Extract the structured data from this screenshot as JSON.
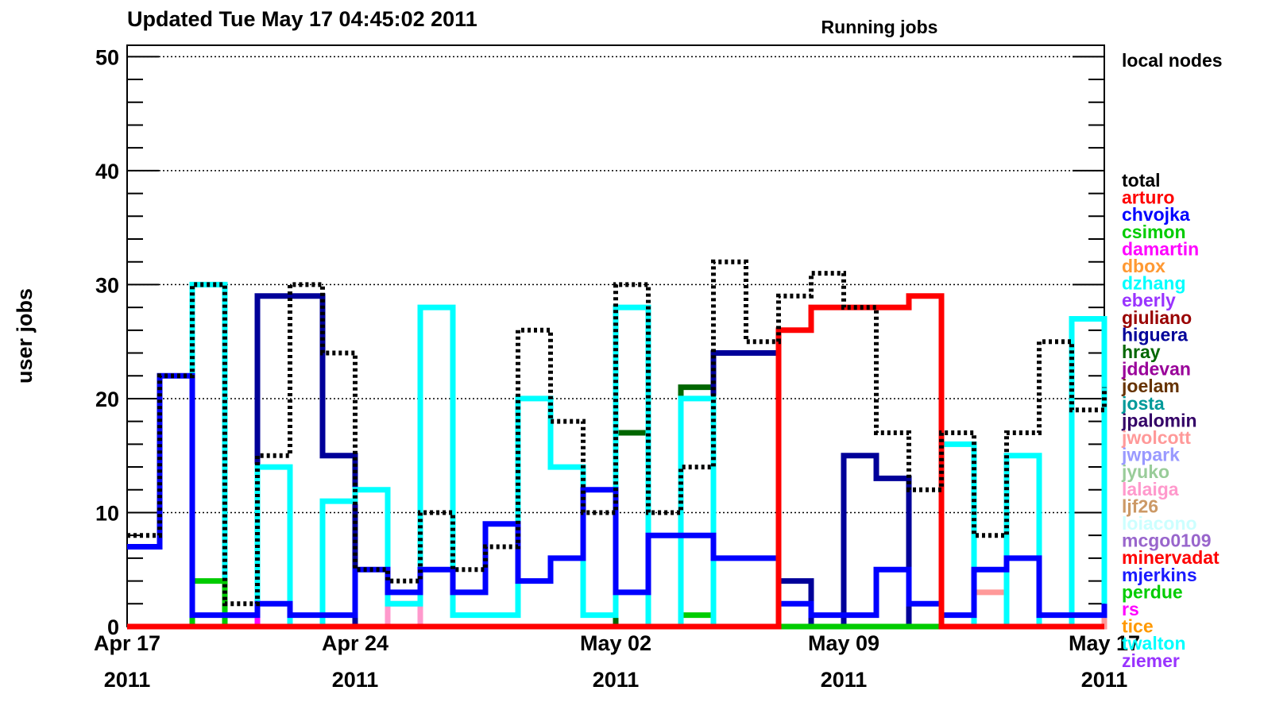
{
  "chart_data": {
    "type": "line",
    "step": true,
    "subtitle": "Updated Tue May 17 04:45:02 2011",
    "title": "Running jobs",
    "annotation": "local nodes",
    "ylabel": "user jobs",
    "ylim": [
      0,
      51
    ],
    "yticks": [
      0,
      10,
      20,
      30,
      40,
      50
    ],
    "grid": true,
    "xlim": [
      "2011-04-17",
      "2011-05-17"
    ],
    "xticks": [
      {
        "value": "2011-04-17",
        "label": "Apr 17 2011"
      },
      {
        "value": "2011-04-24",
        "label": "Apr 24 2011"
      },
      {
        "value": "2011-05-02",
        "label": "May 02 2011"
      },
      {
        "value": "2011-05-09",
        "label": "May 09 2011"
      },
      {
        "value": "2011-05-17",
        "label": "May 17 2011"
      }
    ],
    "x": [
      "2011-04-17",
      "2011-04-18",
      "2011-04-19",
      "2011-04-20",
      "2011-04-21",
      "2011-04-22",
      "2011-04-23",
      "2011-04-24",
      "2011-04-25",
      "2011-04-26",
      "2011-04-27",
      "2011-04-28",
      "2011-04-29",
      "2011-04-30",
      "2011-05-01",
      "2011-05-02",
      "2011-05-03",
      "2011-05-04",
      "2011-05-05",
      "2011-05-06",
      "2011-05-07",
      "2011-05-08",
      "2011-05-09",
      "2011-05-10",
      "2011-05-11",
      "2011-05-12",
      "2011-05-13",
      "2011-05-14",
      "2011-05-15",
      "2011-05-16",
      "2011-05-17"
    ],
    "series": [
      {
        "name": "total",
        "color": "#000000",
        "dashed": true,
        "values": [
          8,
          22,
          30,
          2,
          15,
          30,
          24,
          5,
          4,
          10,
          5,
          7,
          26,
          18,
          10,
          30,
          10,
          14,
          32,
          25,
          29,
          31,
          28,
          17,
          12,
          17,
          8,
          17,
          25,
          19,
          21
        ]
      },
      {
        "name": "arturo",
        "color": "#ff0000",
        "values": [
          0,
          0,
          0,
          0,
          0,
          0,
          0,
          0,
          0,
          0,
          0,
          0,
          0,
          0,
          0,
          0,
          0,
          0,
          0,
          0,
          26,
          28,
          28,
          28,
          29,
          0,
          0,
          0,
          0,
          0,
          0
        ]
      },
      {
        "name": "chvojka",
        "color": "#0000ff",
        "values": [
          7,
          22,
          1,
          1,
          2,
          1,
          1,
          5,
          3,
          5,
          3,
          9,
          4,
          6,
          12,
          3,
          8,
          8,
          6,
          6,
          2,
          1,
          1,
          5,
          2,
          1,
          5,
          6,
          1,
          1,
          2
        ]
      },
      {
        "name": "csimon",
        "color": "#00cc00",
        "values": [
          0,
          0,
          4,
          0,
          0,
          0,
          0,
          0,
          0,
          0,
          0,
          0,
          0,
          0,
          0,
          0,
          0,
          0,
          0,
          0,
          0,
          0,
          0,
          0,
          0,
          0,
          0,
          0,
          0,
          0,
          0
        ]
      },
      {
        "name": "damartin",
        "color": "#ff00ff",
        "values": [
          0,
          0,
          0,
          1,
          0,
          0,
          0,
          0,
          0,
          0,
          0,
          0,
          0,
          0,
          0,
          0,
          0,
          0,
          0,
          0,
          0,
          0,
          0,
          0,
          0,
          0,
          0,
          0,
          0,
          0,
          0
        ]
      },
      {
        "name": "dbox",
        "color": "#ff9933",
        "values": [
          0,
          0,
          0,
          0,
          0,
          0,
          0,
          0,
          0,
          0,
          0,
          0,
          0,
          0,
          0,
          0,
          0,
          0,
          0,
          0,
          0,
          0,
          0,
          0,
          0,
          0,
          0,
          0,
          0,
          0,
          0
        ]
      },
      {
        "name": "dzhang",
        "color": "#00ffff",
        "values": [
          0,
          0,
          30,
          1,
          14,
          0,
          11,
          12,
          2,
          28,
          1,
          1,
          20,
          14,
          1,
          28,
          0,
          20,
          0,
          0,
          0,
          0,
          0,
          0,
          0,
          16,
          0,
          15,
          0,
          27,
          2
        ]
      },
      {
        "name": "eberly",
        "color": "#9933ff",
        "values": [
          0,
          0,
          0,
          0,
          0,
          0,
          0,
          0,
          0,
          0,
          0,
          0,
          0,
          0,
          0,
          0,
          0,
          0,
          0,
          0,
          0,
          0,
          0,
          0,
          0,
          0,
          0,
          0,
          0,
          0,
          0
        ]
      },
      {
        "name": "giuliano",
        "color": "#990000",
        "values": [
          0,
          0,
          0,
          0,
          0,
          0,
          0,
          0,
          0,
          0,
          0,
          0,
          0,
          0,
          0,
          0,
          0,
          0,
          0,
          0,
          0,
          0,
          0,
          0,
          0,
          0,
          0,
          0,
          0,
          0,
          0
        ]
      },
      {
        "name": "higuera",
        "color": "#000099",
        "values": [
          0,
          0,
          0,
          0,
          29,
          29,
          15,
          0,
          0,
          0,
          0,
          0,
          0,
          0,
          0,
          0,
          0,
          0,
          24,
          24,
          4,
          0,
          15,
          13,
          0,
          0,
          0,
          0,
          0,
          0,
          0
        ]
      },
      {
        "name": "hray",
        "color": "#006600",
        "values": [
          0,
          0,
          0,
          0,
          0,
          0,
          0,
          0,
          0,
          0,
          0,
          0,
          0,
          0,
          0,
          17,
          0,
          21,
          0,
          0,
          0,
          0,
          0,
          0,
          0,
          0,
          0,
          0,
          0,
          0,
          0
        ]
      },
      {
        "name": "jddevan",
        "color": "#990099",
        "values": [
          0,
          0,
          0,
          0,
          0,
          0,
          0,
          0,
          0,
          0,
          0,
          0,
          0,
          0,
          0,
          0,
          0,
          0,
          0,
          0,
          0,
          0,
          0,
          0,
          0,
          0,
          0,
          0,
          0,
          0,
          0
        ]
      },
      {
        "name": "joelam",
        "color": "#663300",
        "values": [
          0,
          0,
          0,
          0,
          0,
          0,
          0,
          0,
          0,
          0,
          0,
          0,
          0,
          0,
          0,
          0,
          0,
          0,
          0,
          0,
          0,
          0,
          0,
          0,
          0,
          0,
          0,
          0,
          0,
          0,
          0
        ]
      },
      {
        "name": "josta",
        "color": "#009999",
        "values": [
          0,
          0,
          0,
          0,
          0,
          0,
          0,
          0,
          0,
          0,
          0,
          0,
          0,
          0,
          0,
          0,
          0,
          0,
          0,
          0,
          0,
          0,
          0,
          0,
          0,
          0,
          0,
          0,
          0,
          0,
          0
        ]
      },
      {
        "name": "jpalomin",
        "color": "#330066",
        "values": [
          0,
          0,
          0,
          0,
          0,
          0,
          0,
          0,
          0,
          0,
          0,
          0,
          0,
          0,
          0,
          0,
          0,
          0,
          0,
          0,
          0,
          0,
          0,
          0,
          0,
          0,
          0,
          0,
          0,
          0,
          0
        ]
      },
      {
        "name": "jwolcott",
        "color": "#ff9999",
        "values": [
          0,
          0,
          0,
          0,
          0,
          0,
          0,
          0,
          0,
          0,
          0,
          0,
          0,
          0,
          0,
          0,
          0,
          0,
          0,
          0,
          0,
          0,
          0,
          0,
          0,
          0,
          3,
          0,
          0,
          0,
          1
        ]
      },
      {
        "name": "jwpark",
        "color": "#9999ff",
        "values": [
          0,
          0,
          0,
          0,
          0,
          0,
          0,
          0,
          0,
          0,
          0,
          0,
          0,
          0,
          0,
          0,
          0,
          0,
          0,
          0,
          0,
          0,
          0,
          0,
          0,
          0,
          0,
          0,
          0,
          0,
          0
        ]
      },
      {
        "name": "jyuko",
        "color": "#99cc99",
        "values": [
          0,
          0,
          0,
          0,
          0,
          0,
          0,
          0,
          0,
          0,
          0,
          0,
          0,
          0,
          0,
          0,
          0,
          0,
          0,
          0,
          0,
          0,
          0,
          0,
          0,
          0,
          0,
          0,
          0,
          0,
          0
        ]
      },
      {
        "name": "lalaiga",
        "color": "#ff99cc",
        "values": [
          0,
          0,
          0,
          0,
          0,
          0,
          0,
          0,
          2,
          0,
          0,
          0,
          0,
          0,
          0,
          0,
          0,
          0,
          0,
          0,
          0,
          0,
          0,
          0,
          0,
          0,
          0,
          0,
          0,
          0,
          0
        ]
      },
      {
        "name": "ljf26",
        "color": "#cc9966",
        "values": [
          0,
          0,
          0,
          0,
          0,
          0,
          0,
          0,
          0,
          0,
          0,
          0,
          0,
          0,
          0,
          0,
          0,
          0,
          0,
          0,
          0,
          0,
          0,
          0,
          0,
          0,
          0,
          0,
          0,
          0,
          0
        ]
      },
      {
        "name": "loiacono",
        "color": "#ccffff",
        "values": [
          0,
          0,
          0,
          0,
          0,
          0,
          0,
          0,
          0,
          0,
          0,
          0,
          0,
          0,
          0,
          0,
          0,
          0,
          0,
          0,
          0,
          0,
          0,
          0,
          0,
          0,
          0,
          0,
          0,
          0,
          0
        ]
      },
      {
        "name": "mcgo0109",
        "color": "#9966cc",
        "values": [
          0,
          0,
          0,
          0,
          0,
          0,
          0,
          0,
          0,
          0,
          0,
          0,
          0,
          0,
          0,
          0,
          0,
          0,
          0,
          0,
          0,
          0,
          0,
          0,
          0,
          0,
          0,
          0,
          0,
          0,
          0
        ]
      },
      {
        "name": "minervadat",
        "color": "#ff0000",
        "values": [
          0,
          0,
          0,
          0,
          0,
          0,
          0,
          0,
          0,
          0,
          0,
          0,
          0,
          0,
          0,
          0,
          0,
          0,
          0,
          0,
          0,
          0,
          0,
          0,
          0,
          0,
          0,
          0,
          0,
          0,
          0
        ]
      },
      {
        "name": "mjerkins",
        "color": "#1a1aff",
        "values": [
          0,
          0,
          0,
          0,
          0,
          0,
          0,
          0,
          0,
          0,
          0,
          0,
          0,
          0,
          0,
          0,
          0,
          0,
          0,
          0,
          0,
          0,
          0,
          0,
          0,
          0,
          0,
          0,
          0,
          0,
          0
        ]
      },
      {
        "name": "perdue",
        "color": "#00cc00",
        "values": [
          0,
          0,
          0,
          0,
          0,
          0,
          0,
          0,
          0,
          0,
          0,
          0,
          0,
          0,
          0,
          0,
          0,
          1,
          0,
          0,
          0,
          0,
          0,
          0,
          0,
          0,
          0,
          0,
          0,
          0,
          0
        ]
      },
      {
        "name": "rs",
        "color": "#ff00ff",
        "values": [
          0,
          0,
          0,
          0,
          0,
          0,
          0,
          0,
          0,
          0,
          0,
          0,
          0,
          0,
          0,
          0,
          0,
          0,
          0,
          0,
          0,
          0,
          0,
          0,
          0,
          0,
          0,
          0,
          0,
          0,
          0
        ]
      },
      {
        "name": "tice",
        "color": "#ff9900",
        "values": [
          0,
          0,
          0,
          0,
          0,
          0,
          0,
          0,
          0,
          0,
          0,
          0,
          0,
          0,
          0,
          0,
          0,
          0,
          0,
          0,
          0,
          0,
          0,
          0,
          0,
          0,
          0,
          0,
          0,
          0,
          0
        ]
      },
      {
        "name": "twalton",
        "color": "#00ffff",
        "values": [
          0,
          0,
          0,
          0,
          0,
          0,
          0,
          0,
          0,
          0,
          0,
          0,
          0,
          0,
          0,
          0,
          0,
          0,
          0,
          0,
          0,
          0,
          0,
          0,
          0,
          0,
          0,
          0,
          0,
          0,
          0
        ]
      },
      {
        "name": "ziemer",
        "color": "#9933ff",
        "values": [
          0,
          0,
          0,
          0,
          0,
          0,
          0,
          0,
          0,
          0,
          0,
          0,
          0,
          0,
          0,
          0,
          0,
          0,
          0,
          0,
          0,
          0,
          0,
          0,
          0,
          0,
          0,
          0,
          0,
          0,
          0
        ]
      }
    ]
  }
}
